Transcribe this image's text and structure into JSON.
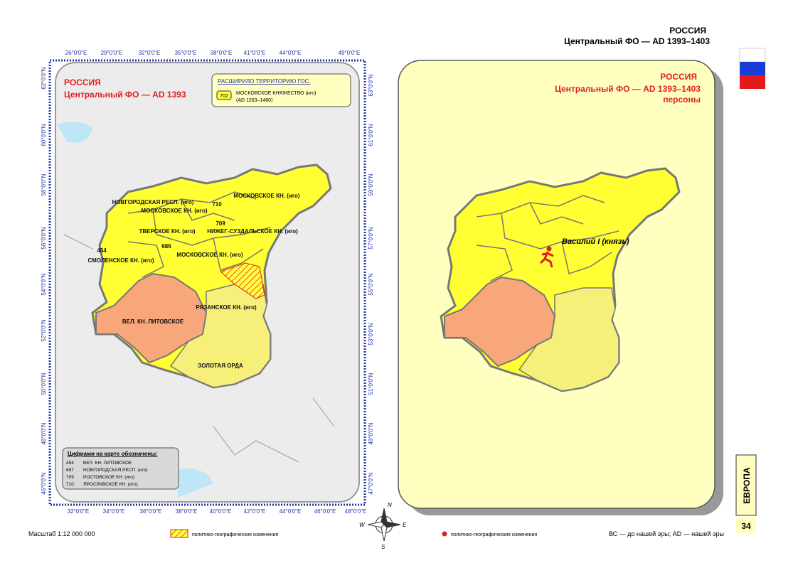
{
  "header": {
    "country": "РОССИЯ",
    "subtitle": "Центральный ФО — AD 1393–1403"
  },
  "left_map": {
    "title": "РОССИЯ",
    "subtitle": "Центральный ФО — AD 1393",
    "legend": {
      "title": "РАСШИРИЛО ТЕРРИТОРИЮ ГОС.",
      "code": "702",
      "label": "МОСКОВСКОЕ КНЯЖЕСТВО (иго)",
      "period": "(AD 1263–1480)"
    },
    "regions": [
      "НОВГОРОДСКАЯ РЕСП. (иго)",
      "МОСКОВСКОЕ КН. (иго)",
      "МОСКОВСКОЕ КН. (иго)",
      "ТВЕРСКОЕ КН. (иго)",
      "НИЖЕГ-СУЗДАЛЬСКОЕ КН. (иго)",
      "МОСКОВСКОЕ КН. (иго)",
      "СМОЛЕНСКОЕ КН. (иго)",
      "РЯЗАНСКОЕ КН. (иго)",
      "ВЕЛ. КН. ЛИТОВСКОЕ",
      "ЗОЛОТАЯ ОРДА"
    ],
    "numbers": [
      "710",
      "709",
      "686",
      "454"
    ],
    "lon_top": [
      "26°0'0\"E",
      "29°0'0\"E",
      "32°0'0\"E",
      "35°0'0\"E",
      "38°0'0\"E",
      "41°0'0\"E",
      "44°0'0\"E",
      "49°0'0\"E"
    ],
    "lon_bottom": [
      "32°0'0\"E",
      "34°0'0\"E",
      "36°0'0\"E",
      "38°0'0\"E",
      "40°0'0\"E",
      "42°0'0\"E",
      "44°0'0\"E",
      "46°0'0\"E",
      "48°0'0\"E"
    ],
    "lat_left": [
      "62°0'0\"N",
      "60°0'0\"N",
      "58°0'0\"N",
      "56°0'0\"N",
      "54°0'0\"N",
      "52°0'0\"N",
      "50°0'0\"N",
      "48°0'0\"N",
      "46°0'0\"N"
    ],
    "lat_right": [
      "63°0'0\"N",
      "61°0'0\"N",
      "59°0'0\"N",
      "57°0'0\"N",
      "55°0'0\"N",
      "53°0'0\"N",
      "51°0'0\"N",
      "49°0'0\"N",
      "47°0'0\"N"
    ],
    "key": {
      "title": "Цифрами на карте обозначены:",
      "rows": [
        [
          "454",
          "ВЕЛ. КН. ЛИТОВСКОЕ"
        ],
        [
          "697",
          "НОВГОРОДСКАЯ РЕСП. (иго)"
        ],
        [
          "709",
          "РОСТОВСКОЕ КН. (иго)"
        ],
        [
          "710",
          "ЯРОСЛАВСКОЕ КН. (иго)"
        ]
      ]
    }
  },
  "right_map": {
    "title": "РОССИЯ",
    "subtitle": "Центральный ФО — AD 1393–1403",
    "subtitle2": "персоны",
    "person": "Василий I (князь)"
  },
  "compass": [
    "N",
    "W",
    "E",
    "S"
  ],
  "footer": {
    "scale": "Масштаб 1:12 000 000",
    "legend_changes": "политико-географические изменения",
    "legend_points": "политико-географические изменения",
    "era": "ВС — до нашей эры; AD — нашей эры",
    "section": "ЕВРОПА",
    "page": "34"
  }
}
